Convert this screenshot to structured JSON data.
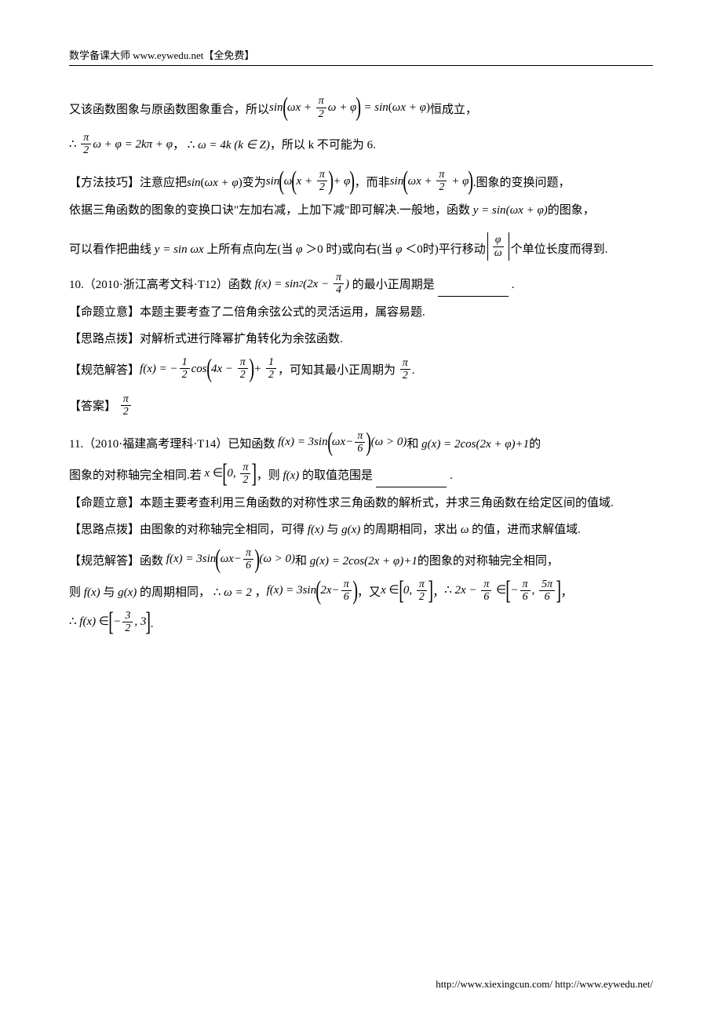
{
  "header": "数学备课大师 www.eywedu.net【全免费】",
  "footer": "http://www.xiexingcun.com/ http://www.eywedu.net/",
  "p1_a": "又该函数图象与原函数图象重合，所以",
  "p1_b": "恒成立，",
  "p2_a": "，",
  "p2_b": "，所以 k 不可能为 6.",
  "p3_a": "【方法技巧】注意应把",
  "p3_b": "变为",
  "p3_c": "，而非",
  "p3_d": ".图象的变换问题，",
  "p4": "依据三角函数的图象的变换口诀\"左加右减，上加下减\"即可解决.一般地，函数",
  "p4_end": " 的图象，",
  "p5_a": "可以看作把曲线",
  "p5_b": "上所有点向左(当",
  "p5_c": "＞0 时)或向右(当",
  "p5_d": "＜0时)平行移动",
  "p5_e": "个单位长度而得到.",
  "p6_a": "10.（2010·浙江高考文科·T12）函数",
  "p6_b": "的最小正周期是",
  "p6_c": ".",
  "p7": "【命题立意】本题主要考查了二倍角余弦公式的灵活运用，属容易题.",
  "p8": "【思路点拨】对解析式进行降幂扩角转化为余弦函数.",
  "p9_a": "【规范解答】",
  "p9_b": "，可知其最小正周期为",
  "p9_c": ".",
  "p10": "【答案】",
  "p11_a": "11.（2010·福建高考理科·T14）已知函数",
  "p11_b": "和",
  "p11_c": "的",
  "p12_a": "图象的对称轴完全相同.若",
  "p12_b": "，则",
  "p12_c": "的取值范围是",
  "p12_d": ".",
  "p13": "【命题立意】本题主要考查利用三角函数的对称性求三角函数的解析式，并求三角函数在给定区间的值域.",
  "p14_a": "【思路点拨】由图象的对称轴完全相同，可得",
  "p14_b": "与",
  "p14_c": "的周期相同，求出",
  "p14_d": "的值，进而求解值域.",
  "p15_a": "【规范解答】函数",
  "p15_b": "和",
  "p15_c": "的图象的对称轴完全相同，",
  "p16_a": "则",
  "p16_b": "与",
  "p16_c": "的周期相同，",
  "p16_d": "，",
  "p16_e": "，又",
  "p16_f": "，",
  "p16_g": "，",
  "p17_a": ".",
  "math": {
    "sin": "sin",
    "cos": "cos",
    "omega": "ω",
    "phi": "φ",
    "varphi": "φ",
    "pi": "π",
    "x": "x",
    "k": "k",
    "Z": "Z",
    "eq": "=",
    "plus": "+",
    "minus": "−",
    "in": "∈",
    "therefore": "∴",
    "two": "2",
    "four": "4",
    "y": "y",
    "f": "f",
    "g": "g",
    "zero": "0",
    "three": "3",
    "one": "1",
    "five": "5",
    "six": "6",
    "gt": ">",
    "frac_pi2_n": "π",
    "frac_pi2_d": "2",
    "frac_pi4_n": "π",
    "frac_pi4_d": "4",
    "frac_pi6_n": "π",
    "frac_pi6_d": "6",
    "frac_12_n": "1",
    "frac_12_d": "2",
    "frac_32_n": "3",
    "frac_32_d": "2",
    "frac_5pi6_n": "5π",
    "frac_5pi6_d": "6",
    "omega_eq_4k": "ω = 4k (k ∈ Z)",
    "omega_eq_2": "ω = 2",
    "two_kpi": "2kπ"
  }
}
